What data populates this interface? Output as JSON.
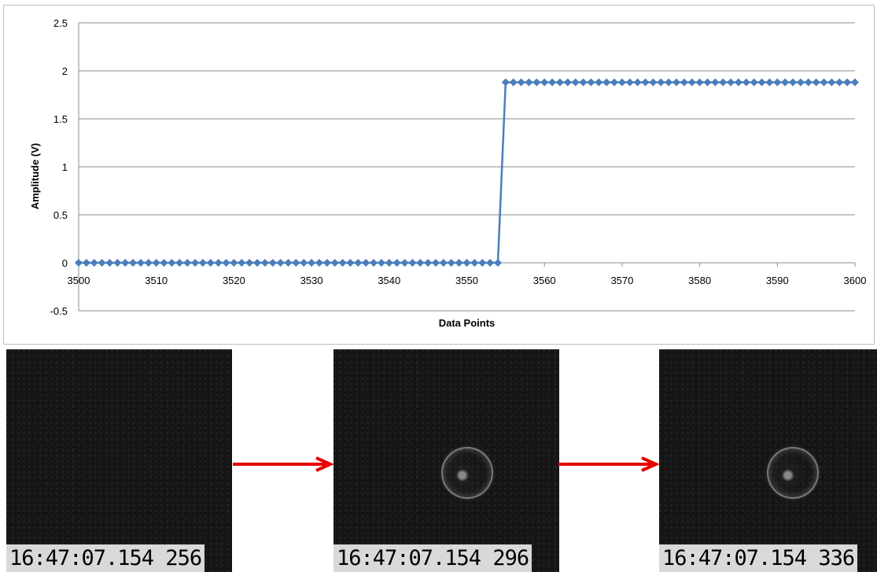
{
  "chart_data": {
    "type": "line",
    "title": "",
    "xlabel": "Data Points",
    "ylabel": "Amplitude (V)",
    "xlim": [
      3500,
      3600
    ],
    "ylim": [
      -0.5,
      2.5
    ],
    "x_ticks": [
      "3500",
      "3510",
      "3520",
      "3530",
      "3540",
      "3550",
      "3560",
      "3570",
      "3580",
      "3590",
      "3600"
    ],
    "y_ticks": [
      "2.5",
      "2",
      "1.5",
      "1",
      "0.5",
      "0",
      "-0.5"
    ],
    "grid": "horizontal",
    "legend": "none",
    "series": [
      {
        "color": "#4a7ebb",
        "marker": "diamond",
        "segments": [
          {
            "x_start": 3500,
            "x_end": 3554,
            "step": 1,
            "y": 0
          },
          {
            "x_start": 3555,
            "x_end": 3600,
            "step": 1,
            "y": 1.88
          }
        ]
      }
    ]
  },
  "frames": [
    {
      "timestamp": "16:47:07.154 256",
      "droplet": false
    },
    {
      "timestamp": "16:47:07.154 296",
      "droplet": true
    },
    {
      "timestamp": "16:47:07.154 336",
      "droplet": true
    }
  ],
  "colors": {
    "arrow": "#e60000",
    "line": "#4a7ebb",
    "frame_bg": "#151515",
    "timestamp_bg": "#d9d9d9"
  }
}
